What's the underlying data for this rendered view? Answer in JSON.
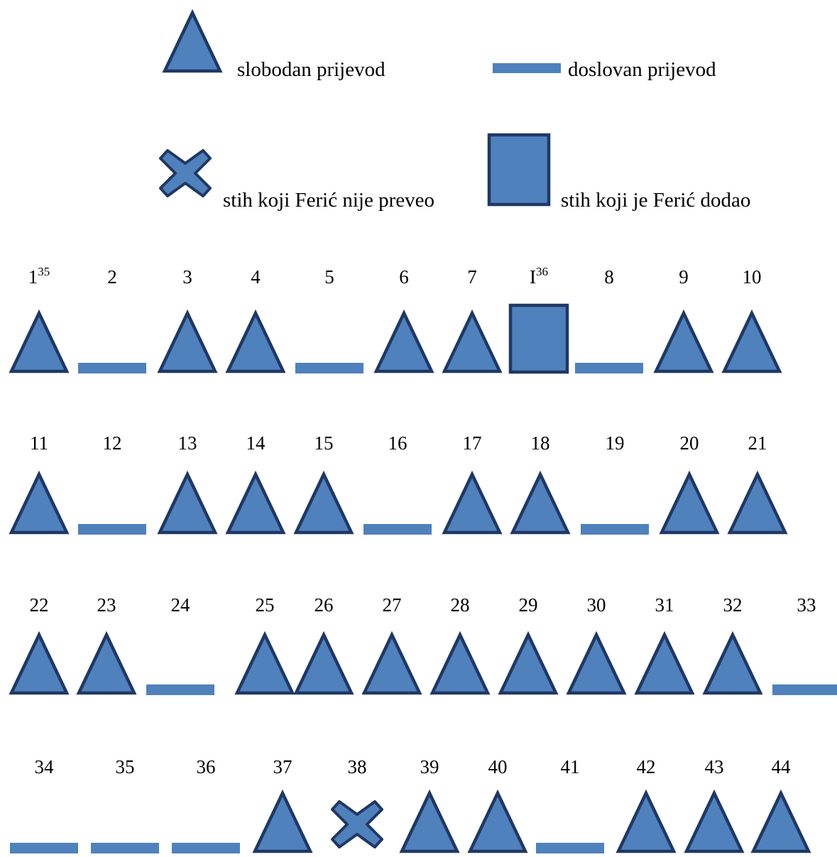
{
  "legend": {
    "free": "slobodan prijevod",
    "literal": "doslovan prijevod",
    "omitted": "stih koji Ferić nije preveo",
    "added": "stih koji je Ferić dodao"
  },
  "colors": {
    "fill": "#4F81BD",
    "stroke": "#1F3864"
  },
  "rows": [
    [
      {
        "label": "1",
        "sup": "35",
        "type": "free"
      },
      {
        "label": "2",
        "type": "literal"
      },
      {
        "label": "3",
        "type": "free"
      },
      {
        "label": "4",
        "type": "free"
      },
      {
        "label": "5",
        "type": "literal"
      },
      {
        "label": "6",
        "type": "free"
      },
      {
        "label": "7",
        "type": "free"
      },
      {
        "label": "I",
        "sup": "36",
        "type": "added"
      },
      {
        "label": "8",
        "type": "literal"
      },
      {
        "label": "9",
        "type": "free"
      },
      {
        "label": "10",
        "type": "free"
      }
    ],
    [
      {
        "label": "11",
        "type": "free"
      },
      {
        "label": "12",
        "type": "literal"
      },
      {
        "label": "13",
        "type": "free"
      },
      {
        "label": "14",
        "type": "free"
      },
      {
        "label": "15",
        "type": "free"
      },
      {
        "label": "16",
        "type": "literal"
      },
      {
        "label": "17",
        "type": "free"
      },
      {
        "label": "18",
        "type": "free"
      },
      {
        "label": "19",
        "type": "literal"
      },
      {
        "label": "20",
        "type": "free"
      },
      {
        "label": "21",
        "type": "free"
      }
    ],
    [
      {
        "label": "22",
        "type": "free"
      },
      {
        "label": "23",
        "type": "free"
      },
      {
        "label": "24",
        "type": "literal"
      },
      {
        "label": "25",
        "type": "free"
      },
      {
        "label": "26",
        "type": "free"
      },
      {
        "label": "27",
        "type": "free"
      },
      {
        "label": "28",
        "type": "free"
      },
      {
        "label": "29",
        "type": "free"
      },
      {
        "label": "30",
        "type": "free"
      },
      {
        "label": "31",
        "type": "free"
      },
      {
        "label": "32",
        "type": "free"
      },
      {
        "label": "33",
        "type": "literal"
      }
    ],
    [
      {
        "label": "34",
        "type": "literal"
      },
      {
        "label": "35",
        "type": "literal"
      },
      {
        "label": "36",
        "type": "literal"
      },
      {
        "label": "37",
        "type": "free"
      },
      {
        "label": "38",
        "type": "omitted"
      },
      {
        "label": "39",
        "type": "free"
      },
      {
        "label": "40",
        "type": "free"
      },
      {
        "label": "41",
        "type": "literal"
      },
      {
        "label": "42",
        "type": "free"
      },
      {
        "label": "43",
        "type": "free"
      },
      {
        "label": "44",
        "type": "free"
      }
    ]
  ]
}
